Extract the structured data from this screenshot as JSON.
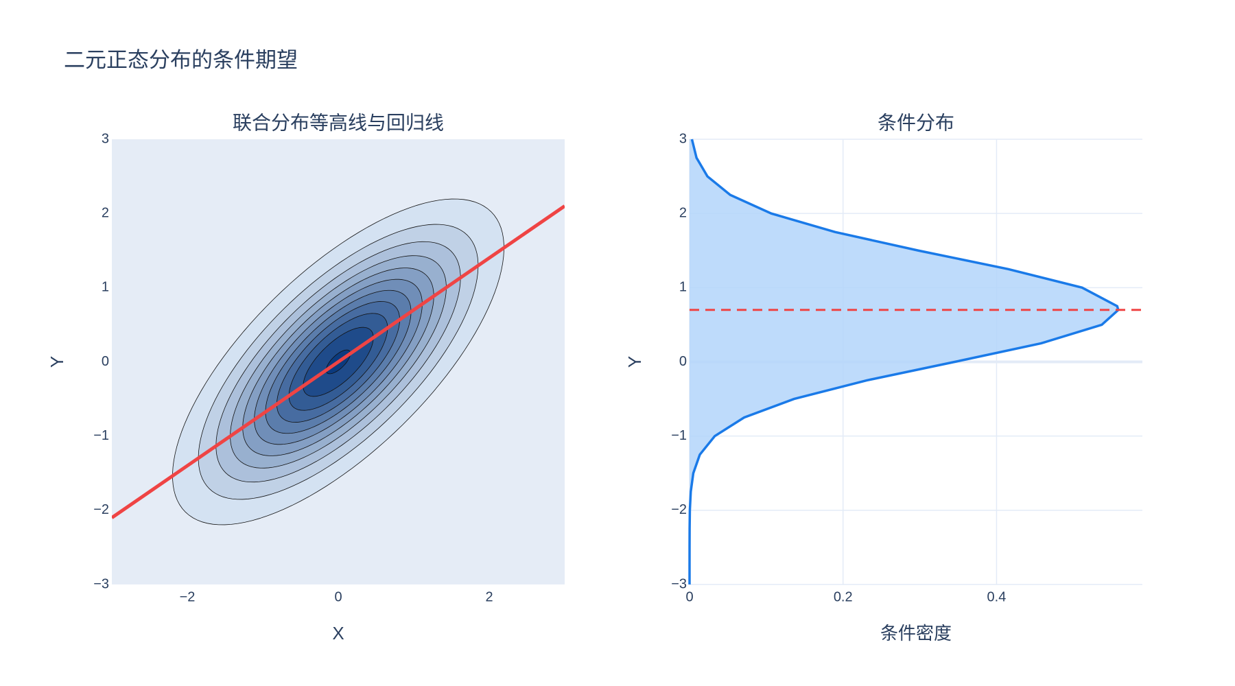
{
  "title": "二元正态分布的条件期望",
  "chart_data": [
    {
      "type": "contour",
      "title": "联合分布等高线与回归线",
      "xlabel": "X",
      "ylabel": "Y",
      "xlim": [
        -3,
        3
      ],
      "ylim": [
        -3,
        3
      ],
      "xticks": [
        {
          "value": -2,
          "label": "−2"
        },
        0,
        2
      ],
      "yticks": [
        {
          "value": -3,
          "label": "−3"
        },
        {
          "value": -2,
          "label": "−2"
        },
        {
          "value": -1,
          "label": "−1"
        },
        0,
        1,
        2,
        3
      ],
      "levels": [
        0.02,
        0.04,
        0.06,
        0.08,
        0.1,
        0.12,
        0.14,
        0.16,
        0.18,
        0.2,
        0.22
      ],
      "colorscale": [
        "#d4e2f2",
        "#0b3a7e"
      ],
      "background": "#e5ecf6",
      "line": {
        "x": [
          -3,
          3
        ],
        "y": [
          -2.1,
          2.1
        ],
        "color": "#ef4444"
      }
    },
    {
      "type": "area",
      "title": "条件分布",
      "xlabel": "条件密度",
      "ylabel": "Y",
      "xlim": [
        0,
        0.59
      ],
      "ylim": [
        -3,
        3
      ],
      "xticks": [
        0,
        0.2,
        0.4
      ],
      "yticks": [
        {
          "value": -3,
          "label": "−3"
        },
        {
          "value": -2,
          "label": "−2"
        },
        {
          "value": -1,
          "label": "−1"
        },
        0,
        1,
        2,
        3
      ],
      "grid": true,
      "color": "#1a7ae8",
      "fill": "#b3d5fa",
      "y": [
        -3,
        -2.75,
        -2.5,
        -2.25,
        -2,
        -1.75,
        -1.5,
        -1.25,
        -1,
        -0.75,
        -0.5,
        -0.25,
        0,
        0.25,
        0.5,
        0.7,
        0.75,
        1,
        1.25,
        1.5,
        1.75,
        2,
        2.25,
        2.5,
        2.75,
        3
      ],
      "x": [
        0,
        0,
        2e-05,
        0.0001,
        0.0004,
        0.0016,
        0.0049,
        0.0134,
        0.0329,
        0.0711,
        0.1361,
        0.2306,
        0.3455,
        0.4581,
        0.5371,
        0.5586,
        0.5572,
        0.5115,
        0.4153,
        0.2982,
        0.1895,
        0.1065,
        0.053,
        0.0233,
        0.0091,
        0.0031
      ],
      "hline": {
        "value": 0.7,
        "color": "#ef4444"
      }
    }
  ]
}
